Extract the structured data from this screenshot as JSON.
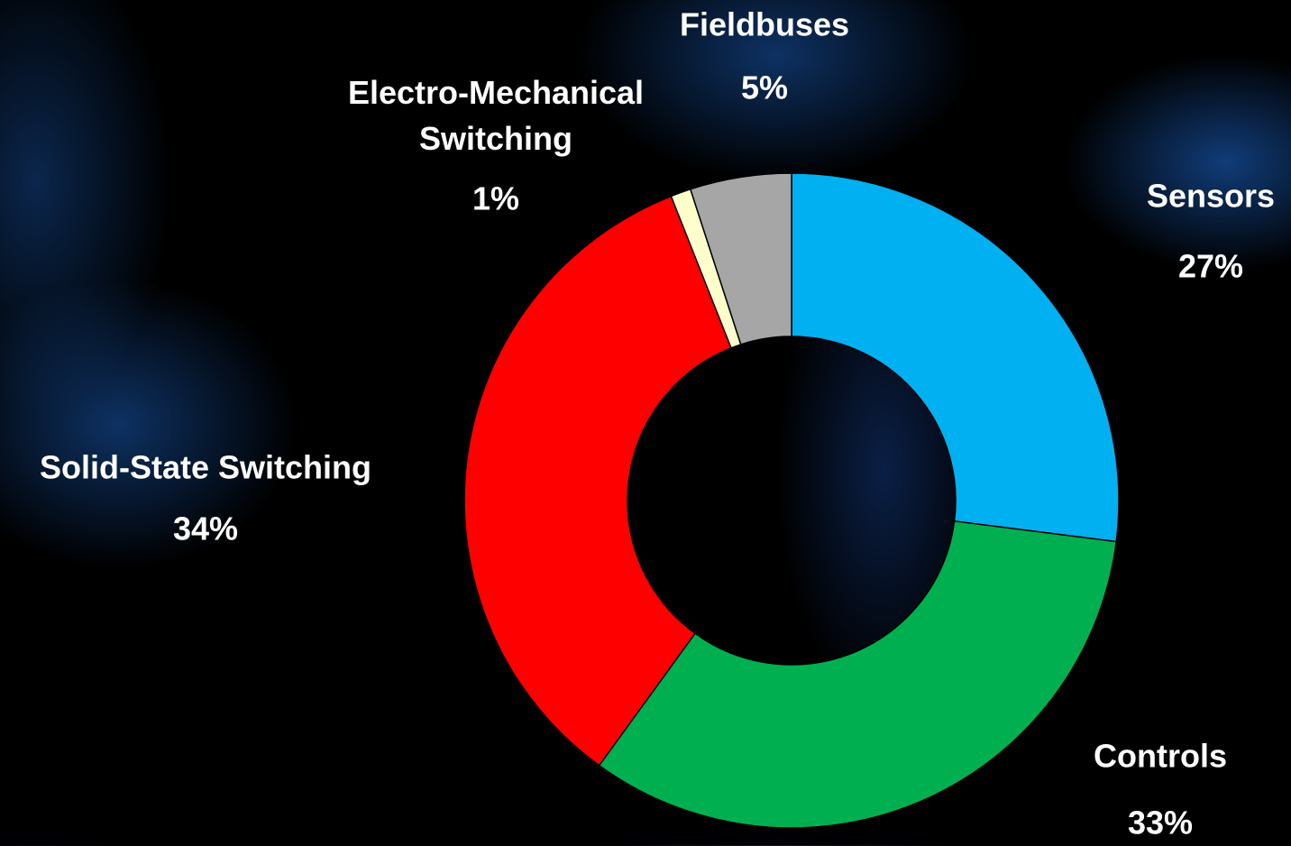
{
  "chart_data": {
    "type": "donut",
    "categories": [
      "Sensors",
      "Controls",
      "Solid-State Switching",
      "Electro-Mechanical Switching",
      "Fieldbuses"
    ],
    "values": [
      27,
      33,
      34,
      1,
      5
    ],
    "value_labels": [
      "27%",
      "33%",
      "34%",
      "1%",
      "5%"
    ],
    "colors": [
      "#00b0f0",
      "#00b050",
      "#ff0000",
      "#ffffcc",
      "#a6a6a6"
    ]
  }
}
